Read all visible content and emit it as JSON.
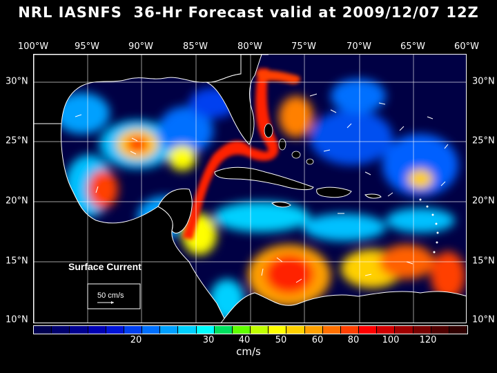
{
  "title": "NRL IASNFS  36-Hr Forecast valid at 2009/12/07 12Z",
  "lon_labels": [
    "100°W",
    "95°W",
    "90°W",
    "85°W",
    "80°W",
    "75°W",
    "70°W",
    "65°W",
    "60°W"
  ],
  "lat_labels": [
    "30°N",
    "25°N",
    "20°N",
    "15°N",
    "10°N"
  ],
  "legend": {
    "title": "Surface Current",
    "scale_label": "50 cm/s"
  },
  "colorbar": {
    "colors": [
      "#000050",
      "#00006e",
      "#000090",
      "#0000b4",
      "#0014d8",
      "#0040f0",
      "#0070ff",
      "#00a0ff",
      "#00d0ff",
      "#00ffff",
      "#00e060",
      "#60ff00",
      "#c0ff00",
      "#ffff00",
      "#ffd000",
      "#ffa000",
      "#ff7000",
      "#ff4000",
      "#ff0000",
      "#d00000",
      "#a00000",
      "#780000",
      "#500000",
      "#300000"
    ],
    "labels": [
      "20",
      "30",
      "40",
      "50",
      "60",
      "80",
      "100",
      "120"
    ],
    "unit": "cm/s"
  },
  "map_colors": {
    "ocean": "#000044",
    "land": "#000000",
    "coast": "#ffffff"
  }
}
